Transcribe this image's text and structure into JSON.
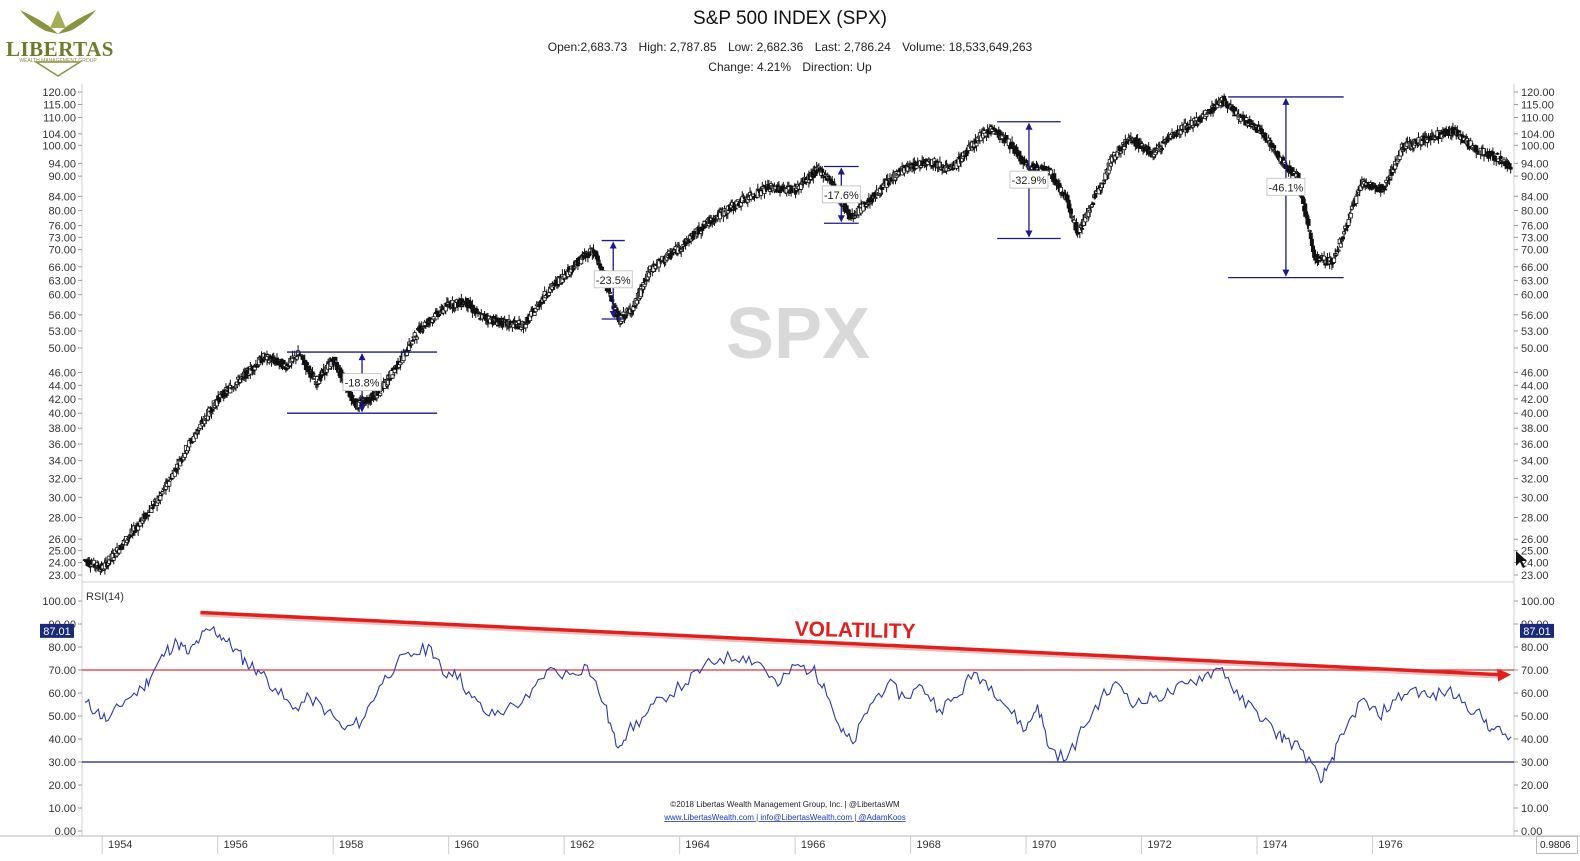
{
  "header": {
    "logo_text": "LIBERTAS",
    "logo_tagline": "WEALTH MANAGEMENT GROUP",
    "title": "S&P 500 INDEX (SPX)",
    "open": "Open:2,683.73",
    "high": "High: 2,787.85",
    "low": "Low: 2,682.36",
    "last": "Last: 2,786.24",
    "volume": "Volume: 18,533,649,263",
    "change": "Change: 4.21%",
    "direction": "Direction: Up"
  },
  "watermark": "SPX",
  "footer": {
    "copyright": "©2018 Libertas Wealth Management Group, Inc. | @LibertasWM",
    "links": "www.LibertasWealth.com | info@LibertasWealth.com | @AdamKoos"
  },
  "corner_value": "0.9806",
  "chart_data": [
    {
      "type": "candlestick",
      "series_name": "SPX",
      "y_scale": "log",
      "ylim": [
        22.5,
        124
      ],
      "y_ticks": [
        "120.00",
        "115.00",
        "110.00",
        "104.00",
        "100.00",
        "94.00",
        "90.00",
        "84.00",
        "80.00",
        "76.00",
        "73.00",
        "70.00",
        "66.00",
        "63.00",
        "60.00",
        "56.00",
        "53.00",
        "50.00",
        "46.00",
        "44.00",
        "42.00",
        "40.00",
        "38.00",
        "36.00",
        "34.00",
        "32.00",
        "30.00",
        "28.00",
        "26.00",
        "25.00",
        "24.00",
        "23.00"
      ],
      "x_ticks": [
        "1954",
        "1956",
        "1958",
        "1960",
        "1962",
        "1964",
        "1966",
        "1968",
        "1970",
        "1972",
        "1974",
        "1976"
      ],
      "x_range": [
        1953.15,
        1977.95
      ],
      "price_path": [
        [
          1953.2,
          24.2
        ],
        [
          1953.5,
          23.5
        ],
        [
          1954.0,
          26.5
        ],
        [
          1954.5,
          30.0
        ],
        [
          1955.0,
          36.0
        ],
        [
          1955.5,
          42.0
        ],
        [
          1955.9,
          45.0
        ],
        [
          1956.3,
          48.5
        ],
        [
          1956.7,
          47.0
        ],
        [
          1956.9,
          49.0
        ],
        [
          1957.2,
          44.5
        ],
        [
          1957.5,
          48.0
        ],
        [
          1957.9,
          41.0
        ],
        [
          1958.3,
          43.0
        ],
        [
          1958.7,
          48.5
        ],
        [
          1959.0,
          53.5
        ],
        [
          1959.5,
          58.0
        ],
        [
          1959.8,
          58.5
        ],
        [
          1960.0,
          56.0
        ],
        [
          1960.4,
          54.5
        ],
        [
          1960.8,
          54.0
        ],
        [
          1961.2,
          60.5
        ],
        [
          1961.8,
          68.0
        ],
        [
          1962.0,
          70.0
        ],
        [
          1962.1,
          66.5
        ],
        [
          1962.45,
          55.0
        ],
        [
          1962.7,
          57.5
        ],
        [
          1963.0,
          65.5
        ],
        [
          1963.5,
          70.5
        ],
        [
          1964.0,
          77.0
        ],
        [
          1964.5,
          82.0
        ],
        [
          1965.0,
          86.5
        ],
        [
          1965.5,
          86.0
        ],
        [
          1965.9,
          92.0
        ],
        [
          1966.1,
          89.0
        ],
        [
          1966.45,
          78.0
        ],
        [
          1966.8,
          83.0
        ],
        [
          1967.3,
          91.5
        ],
        [
          1967.8,
          95.0
        ],
        [
          1968.2,
          92.0
        ],
        [
          1968.7,
          103.0
        ],
        [
          1968.9,
          106.0
        ],
        [
          1969.2,
          101.0
        ],
        [
          1969.5,
          93.0
        ],
        [
          1969.9,
          91.5
        ],
        [
          1970.2,
          83.0
        ],
        [
          1970.4,
          74.0
        ],
        [
          1970.7,
          84.0
        ],
        [
          1971.0,
          96.0
        ],
        [
          1971.3,
          102.5
        ],
        [
          1971.7,
          97.0
        ],
        [
          1972.0,
          103.5
        ],
        [
          1972.5,
          109.0
        ],
        [
          1972.9,
          117.0
        ],
        [
          1973.2,
          110.0
        ],
        [
          1973.6,
          104.5
        ],
        [
          1973.9,
          95.0
        ],
        [
          1974.2,
          90.0
        ],
        [
          1974.5,
          68.0
        ],
        [
          1974.8,
          67.0
        ],
        [
          1975.0,
          74.0
        ],
        [
          1975.3,
          88.0
        ],
        [
          1975.7,
          86.0
        ],
        [
          1976.0,
          99.0
        ],
        [
          1976.5,
          103.0
        ],
        [
          1976.9,
          105.0
        ],
        [
          1977.3,
          98.5
        ],
        [
          1977.7,
          95.5
        ],
        [
          1977.9,
          92.0
        ]
      ],
      "drawdowns": [
        {
          "label": "-18.8%",
          "x_start": 1956.7,
          "x_end": 1959.3,
          "high": 49.3,
          "low": 40.0
        },
        {
          "label": "-23.5%",
          "x_start": 1962.15,
          "x_end": 1962.55,
          "high": 72.2,
          "low": 55.2
        },
        {
          "label": "-17.6%",
          "x_start": 1966.0,
          "x_end": 1966.6,
          "high": 93.0,
          "low": 76.6
        },
        {
          "label": "-32.9%",
          "x_start": 1969.0,
          "x_end": 1970.1,
          "high": 108.4,
          "low": 72.7
        },
        {
          "label": "-46.1%",
          "x_start": 1973.0,
          "x_end": 1975.0,
          "high": 118.0,
          "low": 63.6
        }
      ]
    },
    {
      "type": "line",
      "title": "RSI(14)",
      "ylim": [
        0,
        105
      ],
      "y_ticks": [
        "100.00",
        "90.00",
        "80.00",
        "70.00",
        "60.00",
        "50.00",
        "40.00",
        "30.00",
        "20.00",
        "10.00",
        "0.00"
      ],
      "reference_lines": [
        70,
        30
      ],
      "current_value": "87.01",
      "annotation": "VOLATILITY",
      "trend_arrow": {
        "from": [
          1955.2,
          95
        ],
        "to": [
          1977.9,
          68
        ]
      },
      "series": [
        {
          "values": [
            [
              1953.2,
              56
            ],
            [
              1953.4,
              52
            ],
            [
              1953.6,
              48
            ],
            [
              1953.9,
              57
            ],
            [
              1954.2,
              62
            ],
            [
              1954.4,
              70
            ],
            [
              1954.6,
              78
            ],
            [
              1954.8,
              82
            ],
            [
              1955.0,
              77
            ],
            [
              1955.2,
              84
            ],
            [
              1955.4,
              88
            ],
            [
              1955.6,
              84
            ],
            [
              1955.8,
              79
            ],
            [
              1956.0,
              73
            ],
            [
              1956.2,
              70
            ],
            [
              1956.5,
              62
            ],
            [
              1956.8,
              53
            ],
            [
              1957.1,
              58
            ],
            [
              1957.4,
              52
            ],
            [
              1957.7,
              44
            ],
            [
              1958.0,
              48
            ],
            [
              1958.3,
              63
            ],
            [
              1958.6,
              73
            ],
            [
              1958.9,
              77
            ],
            [
              1959.2,
              80
            ],
            [
              1959.4,
              68
            ],
            [
              1959.6,
              70
            ],
            [
              1959.9,
              58
            ],
            [
              1960.2,
              50
            ],
            [
              1960.5,
              53
            ],
            [
              1960.9,
              58
            ],
            [
              1961.2,
              70
            ],
            [
              1961.6,
              68
            ],
            [
              1961.9,
              72
            ],
            [
              1962.2,
              55
            ],
            [
              1962.4,
              37
            ],
            [
              1962.6,
              43
            ],
            [
              1962.9,
              50
            ],
            [
              1963.2,
              58
            ],
            [
              1963.6,
              64
            ],
            [
              1963.9,
              71
            ],
            [
              1964.2,
              75
            ],
            [
              1964.6,
              76
            ],
            [
              1964.9,
              73
            ],
            [
              1965.2,
              63
            ],
            [
              1965.5,
              72
            ],
            [
              1965.8,
              70
            ],
            [
              1966.0,
              64
            ],
            [
              1966.3,
              43
            ],
            [
              1966.5,
              38
            ],
            [
              1966.8,
              55
            ],
            [
              1967.1,
              64
            ],
            [
              1967.4,
              58
            ],
            [
              1967.7,
              63
            ],
            [
              1968.0,
              53
            ],
            [
              1968.3,
              58
            ],
            [
              1968.6,
              69
            ],
            [
              1968.9,
              63
            ],
            [
              1969.2,
              53
            ],
            [
              1969.5,
              44
            ],
            [
              1969.7,
              55
            ],
            [
              1969.9,
              36
            ],
            [
              1970.2,
              31
            ],
            [
              1970.5,
              45
            ],
            [
              1970.8,
              58
            ],
            [
              1971.1,
              64
            ],
            [
              1971.4,
              55
            ],
            [
              1971.7,
              58
            ],
            [
              1972.0,
              60
            ],
            [
              1972.3,
              64
            ],
            [
              1972.6,
              68
            ],
            [
              1972.9,
              71
            ],
            [
              1973.2,
              57
            ],
            [
              1973.5,
              52
            ],
            [
              1973.8,
              43
            ],
            [
              1974.0,
              40
            ],
            [
              1974.3,
              35
            ],
            [
              1974.6,
              21
            ],
            [
              1974.8,
              32
            ],
            [
              1975.0,
              42
            ],
            [
              1975.3,
              57
            ],
            [
              1975.6,
              50
            ],
            [
              1975.9,
              57
            ],
            [
              1976.2,
              62
            ],
            [
              1976.5,
              58
            ],
            [
              1976.8,
              61
            ],
            [
              1977.1,
              56
            ],
            [
              1977.4,
              49
            ],
            [
              1977.6,
              44
            ],
            [
              1977.9,
              41
            ]
          ]
        }
      ]
    }
  ]
}
